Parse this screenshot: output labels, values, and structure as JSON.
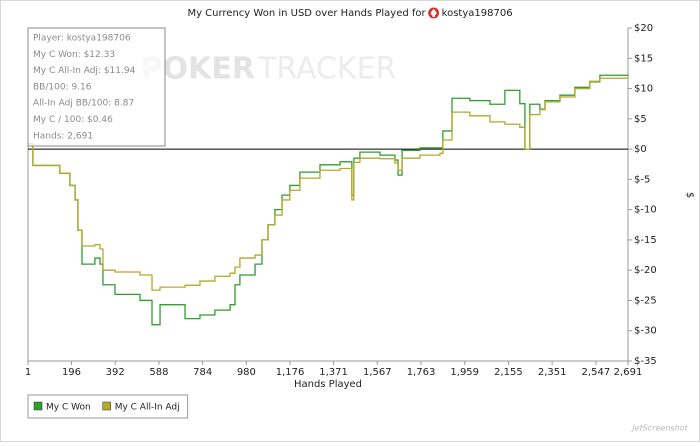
{
  "chart_data": {
    "type": "line",
    "title": "My Currency Won in USD over Hands Played for",
    "player": "kostya198706",
    "x_label": "Hands Played",
    "y_label": "$",
    "step": true,
    "zero_line": true,
    "legend": "bottom-left",
    "watermark": [
      "POKER",
      "TRACKER"
    ],
    "corner_logo": "JetScreenshot",
    "stats": [
      "Player: kostya198706",
      "My C Won: $12.33",
      "My C All-In Adj: $11.94",
      "BB/100: 9.16",
      "All-In Adj BB/100: 8.87",
      "My C / 100: $0.46",
      "Hands: 2,691"
    ],
    "xlim": [
      1,
      2691
    ],
    "ylim": [
      -35,
      20
    ],
    "xticks": [
      1,
      196,
      392,
      588,
      784,
      980,
      {
        "value": 1176,
        "label": "1,176"
      },
      {
        "value": 1371,
        "label": "1,371"
      },
      {
        "value": 1567,
        "label": "1,567"
      },
      {
        "value": 1763,
        "label": "1,763"
      },
      {
        "value": 1959,
        "label": "1,959"
      },
      {
        "value": 2155,
        "label": "2,155"
      },
      {
        "value": 2351,
        "label": "2,351"
      },
      {
        "value": 2547,
        "label": "2,547"
      },
      {
        "value": 2691,
        "label": "2,691"
      }
    ],
    "yticks": [
      {
        "value": 20,
        "label": "$20"
      },
      {
        "value": 15,
        "label": "$15"
      },
      {
        "value": 10,
        "label": "$10"
      },
      {
        "value": 5,
        "label": "$5"
      },
      {
        "value": 0,
        "label": "$0"
      },
      {
        "value": -5,
        "label": "$-5"
      },
      {
        "value": -10,
        "label": "$-10"
      },
      {
        "value": -15,
        "label": "$-15"
      },
      {
        "value": -20,
        "label": "$-20"
      },
      {
        "value": -25,
        "label": "$-25"
      },
      {
        "value": -30,
        "label": "$-30"
      },
      {
        "value": -35,
        "label": "$-35"
      }
    ],
    "x": [
      1,
      23,
      144,
      189,
      212,
      225,
      243,
      301,
      324,
      337,
      391,
      503,
      557,
      593,
      705,
      772,
      839,
      907,
      929,
      951,
      1019,
      1050,
      1077,
      1108,
      1140,
      1175,
      1220,
      1310,
      1400,
      1453,
      1462,
      1489,
      1579,
      1646,
      1660,
      1678,
      1758,
      1848,
      1861,
      1902,
      1982,
      2072,
      2139,
      2206,
      2229,
      2251,
      2296,
      2319,
      2386,
      2453,
      2520,
      2565,
      2691
    ],
    "series": [
      {
        "name": "My C Won",
        "color": "#2e9e2e",
        "values": [
          0.9,
          -2.7,
          -4,
          -6,
          -8.4,
          -13.4,
          -19,
          -18,
          -19,
          -22.4,
          -24,
          -25,
          -29,
          -25.7,
          -28,
          -27.4,
          -26.6,
          -25.7,
          -22.4,
          -20.8,
          -19,
          -15,
          -12.5,
          -10,
          -7.6,
          -6,
          -3.8,
          -2.6,
          -2.1,
          -7.6,
          -1.5,
          -0.5,
          -1,
          -1.8,
          -4.3,
          -0.2,
          0.2,
          0.2,
          3,
          8.4,
          8,
          7.4,
          9.7,
          7.5,
          0,
          7.4,
          6.6,
          8,
          8.9,
          10.2,
          11.1,
          12.2,
          12.33
        ]
      },
      {
        "name": "My C All-In Adj",
        "color": "#b5a82a",
        "values": [
          0.9,
          -2.7,
          -4,
          -6,
          -8.4,
          -13.4,
          -16,
          -15.8,
          -16.5,
          -20,
          -20.3,
          -20.8,
          -23.3,
          -22.8,
          -22.5,
          -21.8,
          -21,
          -20.5,
          -19.5,
          -18,
          -17.5,
          -15,
          -12.5,
          -10.9,
          -8.4,
          -6.8,
          -4.8,
          -3.5,
          -3.2,
          -8.4,
          -2.2,
          -1.5,
          -1.6,
          -2.3,
          -3.5,
          -1.5,
          -1,
          -0.7,
          1.5,
          6.1,
          5.5,
          4.5,
          4.1,
          3.6,
          0,
          5.7,
          6.5,
          7.8,
          8.6,
          10,
          11.2,
          11.7,
          11.94
        ]
      }
    ]
  }
}
